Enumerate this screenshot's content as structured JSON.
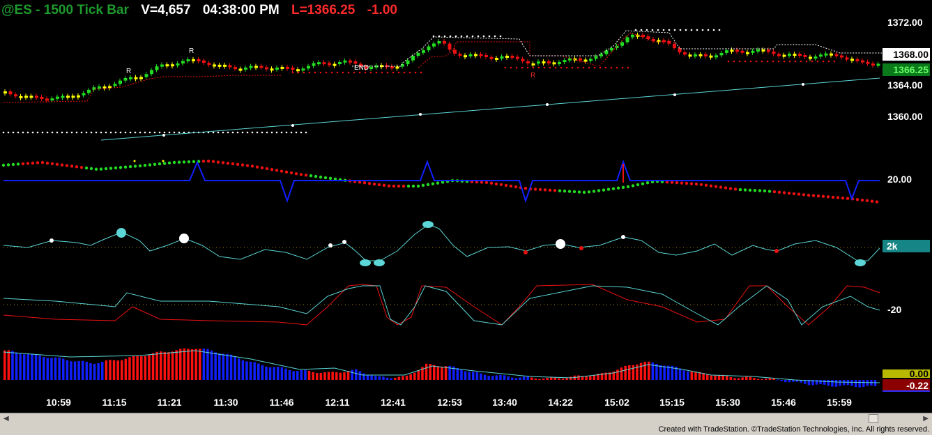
{
  "header": {
    "symbol": "@ES - 1500 Tick Bar",
    "volume": "V=4,657",
    "time": "04:38:00 PM",
    "last": "L=1366.25",
    "change": "-1.00"
  },
  "annotations": {
    "end": "END",
    "r1": "R",
    "r2": "R",
    "r3": "R"
  },
  "axis": {
    "price_labels": [
      "1372.00",
      "1364.00",
      "1360.00"
    ],
    "price_box_white": "1368.00",
    "price_box_green": "1366.25",
    "osc1_label": "20.00",
    "osc2_box": "2k",
    "osc3_label": "-20",
    "hist_box_yellow": "0.00",
    "hist_box_red": "-0.22"
  },
  "time_labels": [
    "10:59",
    "11:15",
    "11:21",
    "11:30",
    "11:46",
    "12:11",
    "12:41",
    "12:53",
    "13:40",
    "14:22",
    "15:02",
    "15:15",
    "15:30",
    "15:46",
    "15:59"
  ],
  "colors": {
    "background": "#000000",
    "up": "#22dd22",
    "down": "#ee1111",
    "neutral": "#ffff00",
    "cyan": "#5cd6d6",
    "blue": "#1020ff"
  },
  "credit": "Created with TradeStation. ©TradeStation Technologies, Inc. All rights reserved."
}
